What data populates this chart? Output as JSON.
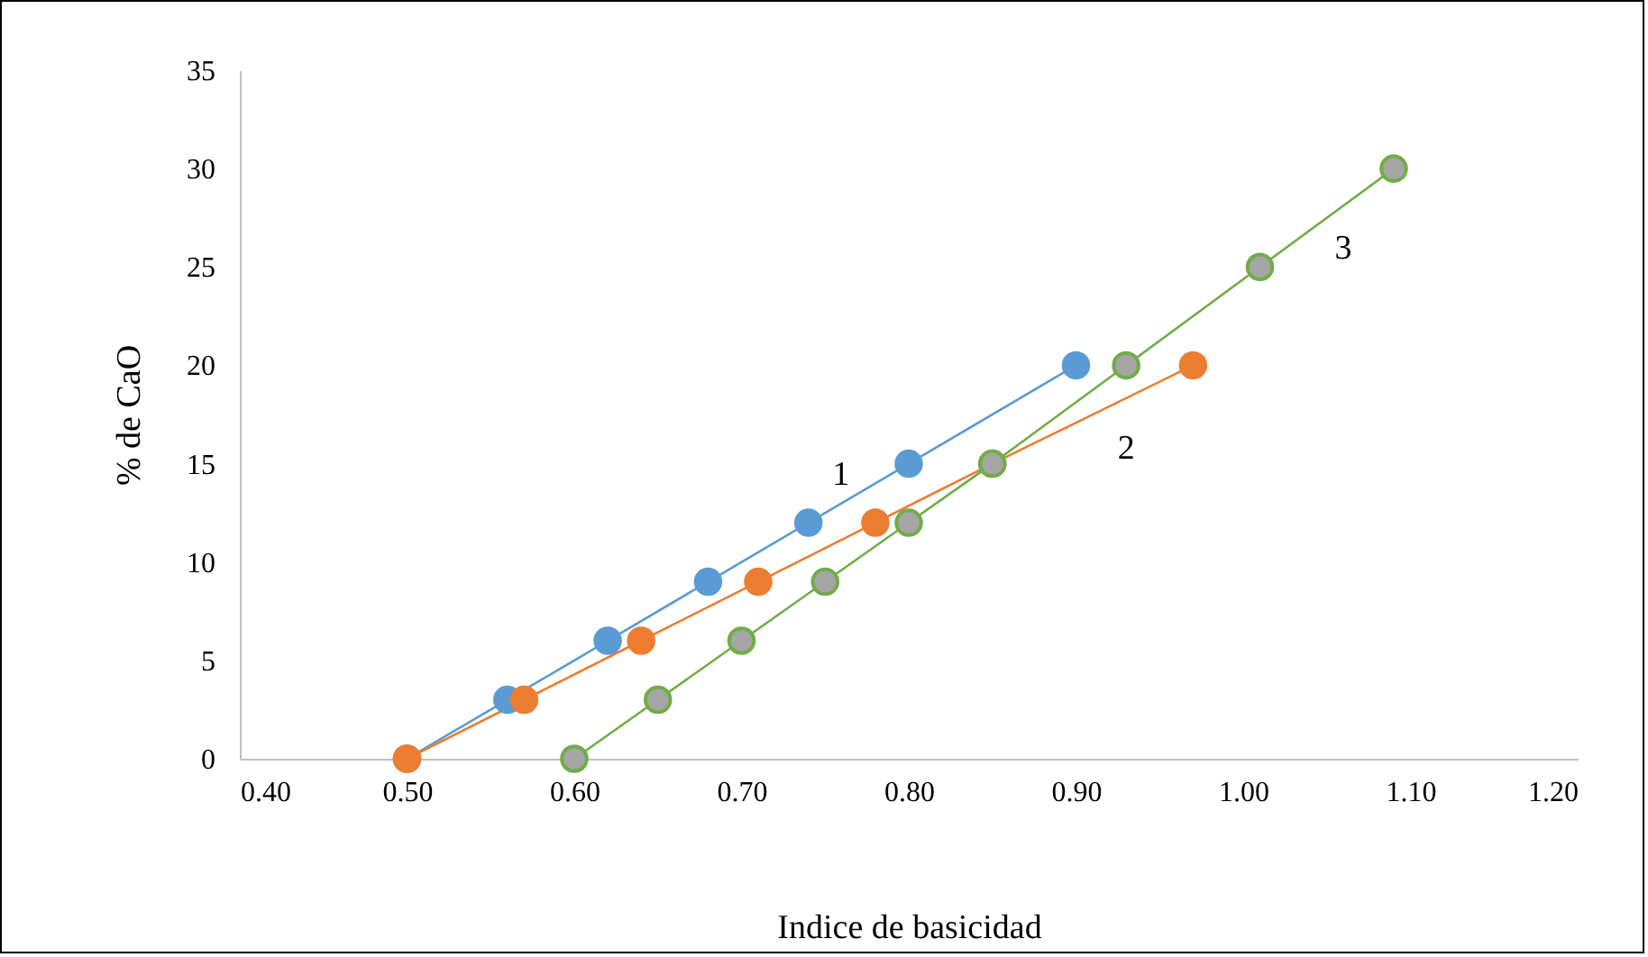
{
  "chart_data": {
    "type": "line",
    "xlabel": "Indice de basicidad",
    "ylabel": "% de CaO",
    "xlim": [
      0.4,
      1.2
    ],
    "xticks": [
      {
        "value": 0.4,
        "label": "0.40"
      },
      {
        "value": 0.5,
        "label": "0.50"
      },
      {
        "value": 0.6,
        "label": "0.60"
      },
      {
        "value": 0.7,
        "label": "0.70"
      },
      {
        "value": 0.8,
        "label": "0.80"
      },
      {
        "value": 0.9,
        "label": "0.90"
      },
      {
        "value": 1.0,
        "label": "1.00"
      },
      {
        "value": 1.1,
        "label": "1.10"
      },
      {
        "value": 1.2,
        "label": "1.20"
      }
    ],
    "ylim": [
      0,
      35
    ],
    "yticks": [
      0,
      5,
      10,
      15,
      20,
      25,
      30,
      35
    ],
    "grid": false,
    "legend": false,
    "marker": "circle",
    "series": [
      {
        "name": "1",
        "color": "#5b9bd5",
        "x": [
          0.5,
          0.56,
          0.62,
          0.68,
          0.74,
          0.8,
          0.9
        ],
        "values": [
          0,
          3,
          6,
          9,
          12,
          15,
          20
        ]
      },
      {
        "name": "2",
        "color": "#ed7d31",
        "x": [
          0.5,
          0.57,
          0.64,
          0.71,
          0.78,
          0.85,
          0.97
        ],
        "values": [
          0,
          3,
          6,
          9,
          12,
          15,
          20
        ]
      },
      {
        "name": "3",
        "color": "#70ad47",
        "x": [
          0.6,
          0.65,
          0.7,
          0.75,
          0.8,
          0.85,
          0.93,
          1.01,
          1.09
        ],
        "values": [
          0,
          3,
          6,
          9,
          12,
          15,
          20,
          25,
          30
        ]
      }
    ]
  }
}
